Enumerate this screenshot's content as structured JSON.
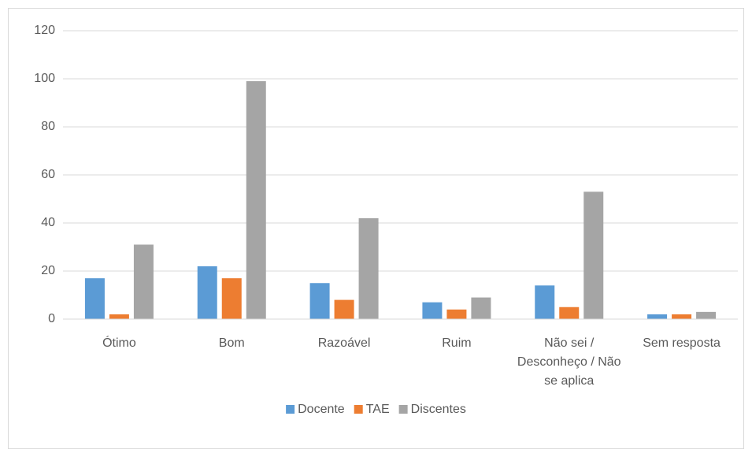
{
  "chart_data": {
    "type": "bar",
    "categories": [
      "Ótimo",
      "Bom",
      "Razoável",
      "Ruim",
      "Não sei / Desconheço / Não se aplica",
      "Sem resposta"
    ],
    "series": [
      {
        "name": "Docente",
        "color": "#5b9bd5",
        "values": [
          17,
          22,
          15,
          7,
          14,
          2
        ]
      },
      {
        "name": "TAE",
        "color": "#ed7d31",
        "values": [
          2,
          17,
          8,
          4,
          5,
          2
        ]
      },
      {
        "name": "Discentes",
        "color": "#a5a5a5",
        "values": [
          31,
          99,
          42,
          9,
          53,
          3
        ]
      }
    ],
    "ylim": [
      0,
      120
    ],
    "yticks": [
      0,
      20,
      40,
      60,
      80,
      100,
      120
    ],
    "grid": true,
    "legend": "bottom"
  }
}
